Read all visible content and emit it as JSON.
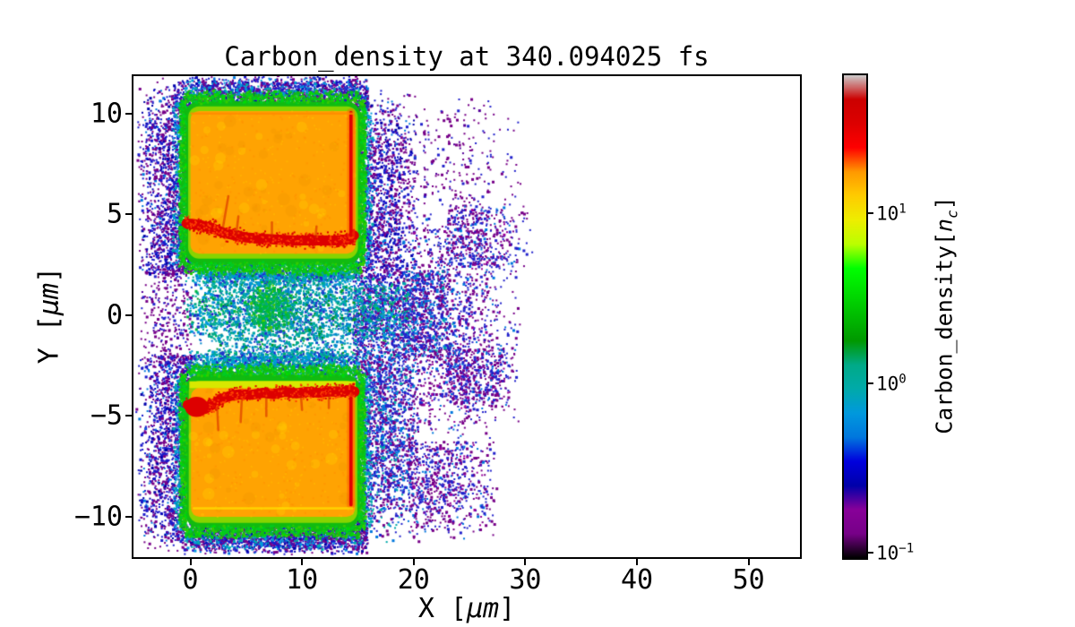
{
  "title": "Carbon_density at 340.094025 fs",
  "axes": {
    "xlabel_prefix": "X [",
    "xlabel_unit": "μm",
    "xlabel_suffix": "]",
    "ylabel_prefix": "Y [",
    "ylabel_unit": "μm",
    "ylabel_suffix": "]"
  },
  "colorbar": {
    "label_prefix": "Carbon_density[",
    "label_var": "n",
    "label_sub": "c",
    "label_suffix": "]",
    "log_min": -1.03,
    "log_max": 1.81,
    "ticks": [
      {
        "value": 10,
        "base": "10",
        "exp": "1"
      },
      {
        "value": 1,
        "base": "10",
        "exp": "0"
      },
      {
        "value": 0.1,
        "base": "10",
        "exp": "−1"
      }
    ],
    "colormap": "nipy_spectral",
    "stops": [
      [
        0.0,
        "#000000"
      ],
      [
        0.05,
        "#770088"
      ],
      [
        0.1,
        "#880099"
      ],
      [
        0.15,
        "#0000aa"
      ],
      [
        0.2,
        "#0000dd"
      ],
      [
        0.25,
        "#0077dd"
      ],
      [
        0.3,
        "#0099dd"
      ],
      [
        0.35,
        "#00aaaa"
      ],
      [
        0.4,
        "#00aa88"
      ],
      [
        0.45,
        "#009900"
      ],
      [
        0.5,
        "#00bb00"
      ],
      [
        0.55,
        "#00dd00"
      ],
      [
        0.6,
        "#00ff00"
      ],
      [
        0.65,
        "#bbff00"
      ],
      [
        0.7,
        "#eeee00"
      ],
      [
        0.75,
        "#ffcc00"
      ],
      [
        0.8,
        "#ff9900"
      ],
      [
        0.85,
        "#ff0000"
      ],
      [
        0.9,
        "#dd0000"
      ],
      [
        0.95,
        "#cc0000"
      ],
      [
        1.0,
        "#cccccc"
      ]
    ]
  },
  "chart_data": {
    "type": "heatmap",
    "title": "Carbon_density at 340.094025 fs",
    "xlabel": "X [μm]",
    "ylabel": "Y [μm]",
    "colorbar_label": "Carbon_density[n_c]",
    "color_scale": "log",
    "clim": [
      0.093,
      64.5
    ],
    "xlim": [
      -5.1,
      54.6
    ],
    "ylim": [
      -12.0,
      11.85
    ],
    "xticks": [
      0,
      10,
      20,
      30,
      40,
      50
    ],
    "yticks": [
      10,
      5,
      0,
      -5,
      -10
    ],
    "description": "2D carbon ion density map: two ~15 μm wide slabs (upper y≈3..10 μm, lower y≈-10..-3 μm, density ~20 n_c, orange) with compressed red fronts (~40 n_c) facing the central gap, green surface fringes (~5 n_c), a teal/cyan plasma plume (~1 n_c) filling the gap near y=0, and a sparse blue/purple halo (<0.5 n_c) of blow-off ions extending to x≈30 μm.",
    "features": {
      "palettes": {
        "halo": [
          [
            "#770088",
            0.42
          ],
          [
            "#1a1acc",
            0.38
          ],
          [
            "#0000aa",
            0.12
          ],
          [
            "#0077dd",
            0.08
          ]
        ],
        "halo2": [
          [
            "#770088",
            0.3
          ],
          [
            "#2222cc",
            0.4
          ],
          [
            "#0077dd",
            0.18
          ],
          [
            "#00aaaa",
            0.12
          ]
        ],
        "sparse": [
          [
            "#770088",
            0.62
          ],
          [
            "#2222cc",
            0.3
          ],
          [
            "#550099",
            0.08
          ]
        ],
        "sparse2": [
          [
            "#770088",
            0.48
          ],
          [
            "#2222cc",
            0.36
          ],
          [
            "#0077dd",
            0.1
          ],
          [
            "#990099",
            0.06
          ]
        ],
        "teal_mix": [
          [
            "#00aa88",
            0.4
          ],
          [
            "#0099dd",
            0.3
          ],
          [
            "#00bb44",
            0.12
          ],
          [
            "#2222cc",
            0.18
          ]
        ],
        "plume": [
          [
            "#0088cc",
            0.32
          ],
          [
            "#00aaaa",
            0.28
          ],
          [
            "#00aa88",
            0.15
          ],
          [
            "#2233cc",
            0.15
          ],
          [
            "#009922",
            0.1
          ]
        ],
        "plume_green": [
          [
            "#00bb33",
            0.55
          ],
          [
            "#00aa77",
            0.35
          ],
          [
            "#55cc00",
            0.1
          ]
        ],
        "green_fuzz": [
          [
            "#11bb11",
            0.4
          ],
          [
            "#00cc22",
            0.3
          ],
          [
            "#33cc00",
            0.2
          ],
          [
            "#00dd00",
            0.1
          ]
        ],
        "cyan_ring": [
          [
            "#0099dd",
            0.45
          ],
          [
            "#00aaaa",
            0.3
          ],
          [
            "#2233cc",
            0.25
          ]
        ]
      },
      "speckle_lobes": [
        {
          "x": [
            -4.9,
            0.2
          ],
          "y": [
            2.0,
            11.7
          ],
          "n": 2300,
          "c": "halo",
          "fade": [
            0.5,
            0,
            0,
            0.25
          ]
        },
        {
          "x": [
            -4.9,
            0.2
          ],
          "y": [
            -11.8,
            -2.0
          ],
          "n": 2300,
          "c": "halo",
          "fade": [
            0.5,
            0,
            0.2,
            0
          ]
        },
        {
          "x": [
            -4.9,
            0.1
          ],
          "y": [
            -2.4,
            2.4
          ],
          "n": 420,
          "c": "sparse",
          "fade": [
            0.5,
            0,
            0,
            0
          ]
        },
        {
          "x": [
            -2.6,
            15.9
          ],
          "y": [
            10.1,
            11.9
          ],
          "n": 3000,
          "c": "halo",
          "fade": [
            0.25,
            0,
            0,
            0.45
          ]
        },
        {
          "x": [
            -2.6,
            15.9
          ],
          "y": [
            -11.9,
            -10.2
          ],
          "n": 3000,
          "c": "halo",
          "fade": [
            0.25,
            0,
            0.45,
            0
          ]
        },
        {
          "x": [
            14.6,
            20.6
          ],
          "y": [
            1.5,
            11.3
          ],
          "n": 2500,
          "c": "halo",
          "fade": [
            0,
            0.45,
            0,
            0.35
          ]
        },
        {
          "x": [
            14.6,
            20.6
          ],
          "y": [
            -11.4,
            1.5
          ],
          "n": 3900,
          "c": "halo2",
          "fade": [
            0,
            0.35,
            0.3,
            0
          ]
        },
        {
          "x": [
            19.5,
            29.9
          ],
          "y": [
            -6.3,
            5.7
          ],
          "n": 2400,
          "c": "sparse2",
          "fade": [
            0,
            0.55,
            0.25,
            0.25
          ]
        },
        {
          "x": [
            20.0,
            30.4
          ],
          "y": [
            5.7,
            11.1
          ],
          "n": 420,
          "c": "sparse",
          "fade": [
            0,
            0.6,
            0,
            0.5
          ]
        },
        {
          "x": [
            19.5,
            27.9
          ],
          "y": [
            -11.3,
            -6.3
          ],
          "n": 1150,
          "c": "sparse2",
          "fade": [
            0,
            0.5,
            0.35,
            0
          ]
        },
        {
          "x": [
            23.0,
            30.7
          ],
          "y": [
            2.4,
            5.7
          ],
          "n": 600,
          "c": "sparse2",
          "fade": [
            0,
            0.5,
            0,
            0.2
          ]
        },
        {
          "x": [
            23.0,
            29.7
          ],
          "y": [
            -4.9,
            -1.6
          ],
          "n": 520,
          "c": "sparse2",
          "fade": [
            0,
            0.5,
            0.2,
            0
          ]
        },
        {
          "x": [
            -0.2,
            15.3
          ],
          "y": [
            1.5,
            2.75
          ],
          "n": 1900,
          "c": "teal_mix",
          "fade": [
            0.1,
            0.1,
            0.35,
            0
          ]
        },
        {
          "x": [
            -0.2,
            15.3
          ],
          "y": [
            -3.05,
            -1.7
          ],
          "n": 1800,
          "c": "teal_mix",
          "fade": [
            0.1,
            0.1,
            0,
            0.3
          ]
        },
        {
          "x": [
            19.0,
            24.0
          ],
          "y": [
            -2.1,
            2.2
          ],
          "n": 800,
          "c": "halo2",
          "fade": [
            0,
            0.45,
            0,
            0
          ]
        }
      ],
      "plumes": [
        {
          "cx": 8.5,
          "cy": 0.15,
          "rx": 9.6,
          "ry": 2.9,
          "n": 7500,
          "c": "plume"
        },
        {
          "cx": 7.2,
          "cy": 0.4,
          "rx": 2.5,
          "ry": 1.4,
          "n": 1300,
          "c": "plume_green"
        },
        {
          "cx": 17.5,
          "cy": 0.3,
          "rx": 3.4,
          "ry": 1.9,
          "n": 650,
          "c": "teal_mix"
        },
        {
          "cx": 2.0,
          "cy": 0.1,
          "rx": 2.8,
          "ry": 1.7,
          "n": 520,
          "c": "teal_mix"
        }
      ],
      "blocks": [
        {
          "name": "upper_slab",
          "green": {
            "x": [
              -0.5,
              15.25
            ],
            "y": [
              2.5,
              10.6
            ],
            "r": 0.9,
            "color": "#11bb11"
          },
          "yg": {
            "x": [
              -0.2,
              15.0
            ],
            "y": [
              2.8,
              10.35
            ],
            "r": 0.7,
            "color": "#88d400"
          },
          "core": {
            "x": [
              0.0,
              14.8
            ],
            "y": [
              3.05,
              10.12
            ],
            "r": 0.55,
            "color": "#ffa302"
          },
          "yellow_strip": null,
          "red_band": {
            "pts": [
              [
                -0.35,
                4.55
              ],
              [
                1,
                4.45
              ],
              [
                2,
                4.3
              ],
              [
                3,
                4.08
              ],
              [
                4,
                3.95
              ],
              [
                5,
                3.85
              ],
              [
                6.5,
                3.78
              ],
              [
                8,
                3.74
              ],
              [
                9.5,
                3.7
              ],
              [
                11,
                3.72
              ],
              [
                12.5,
                3.7
              ],
              [
                13.5,
                3.72
              ],
              [
                14.3,
                3.78
              ],
              [
                14.65,
                3.95
              ]
            ],
            "w": 0.5,
            "color": "#dd0000"
          },
          "left_blob": null,
          "right_edge": {
            "x": 14.38,
            "y": [
              3.95,
              10.05
            ],
            "w": 0.3,
            "color": "#e00000"
          },
          "inner_line": {
            "x": [
              0.1,
              14.6
            ],
            "y": 10.0,
            "color": "#ff8800"
          },
          "drips": [
            {
              "x": 2.9,
              "y0": 4.3,
              "y1": 5.9,
              "dx": 0.5
            },
            {
              "x": 4.1,
              "y0": 4.0,
              "y1": 4.9,
              "dx": 0.2
            },
            {
              "x": 7.3,
              "y0": 3.9,
              "y1": 4.6,
              "dx": 0
            },
            {
              "x": 11.2,
              "y0": 3.85,
              "y1": 4.4,
              "dx": 0.1
            }
          ]
        },
        {
          "name": "lower_slab",
          "green": {
            "x": [
              -0.45,
              15.2
            ],
            "y": [
              -10.55,
              -2.95
            ],
            "r": 0.9,
            "color": "#11bb11"
          },
          "yg": {
            "x": [
              -0.15,
              14.95
            ],
            "y": [
              -10.3,
              -3.25
            ],
            "r": 0.7,
            "color": "#88d400"
          },
          "core": {
            "x": [
              0.05,
              14.75
            ],
            "y": [
              -10.0,
              -3.6
            ],
            "r": 0.55,
            "color": "#ffa302"
          },
          "yellow_strip": {
            "x": [
              -0.1,
              14.8
            ],
            "y": [
              -3.62,
              -3.28
            ],
            "color": "#d8e800"
          },
          "red_band": {
            "pts": [
              [
                -0.25,
                -4.45
              ],
              [
                0.6,
                -4.6
              ],
              [
                1.3,
                -4.65
              ],
              [
                2.1,
                -4.4
              ],
              [
                2.8,
                -4.15
              ],
              [
                3.6,
                -4.0
              ],
              [
                4.5,
                -3.92
              ],
              [
                5.5,
                -3.95
              ],
              [
                6.5,
                -3.85
              ],
              [
                7.5,
                -3.92
              ],
              [
                8.5,
                -3.8
              ],
              [
                9.5,
                -3.88
              ],
              [
                10.5,
                -3.8
              ],
              [
                11.5,
                -3.85
              ],
              [
                12.5,
                -3.78
              ],
              [
                13.5,
                -3.82
              ],
              [
                14.3,
                -3.72
              ],
              [
                14.7,
                -3.8
              ]
            ],
            "w": 0.5,
            "color": "#dd0000"
          },
          "left_blob": {
            "cx": 0.55,
            "cy": -4.55,
            "rx": 1.05,
            "ry": 0.5,
            "color": "#dd0000"
          },
          "right_edge": {
            "x": 14.38,
            "y": [
              -9.4,
              -4.1
            ],
            "w": 0.3,
            "color": "#e00000"
          },
          "inner_line": {
            "x": [
              0.3,
              14.5
            ],
            "y": -9.58,
            "color": "#ffdd00"
          },
          "drips": [
            {
              "x": 2.4,
              "y0": -4.6,
              "y1": -5.7,
              "dx": 0.1
            },
            {
              "x": 4.6,
              "y0": -4.2,
              "y1": -5.3,
              "dx": -0.1
            },
            {
              "x": 6.8,
              "y0": -4.1,
              "y1": -5.0,
              "dx": 0
            },
            {
              "x": 9.9,
              "y0": -4.0,
              "y1": -4.7,
              "dx": 0.1
            },
            {
              "x": 12.4,
              "y0": -4.0,
              "y1": -4.6,
              "dx": 0
            }
          ]
        }
      ]
    }
  }
}
